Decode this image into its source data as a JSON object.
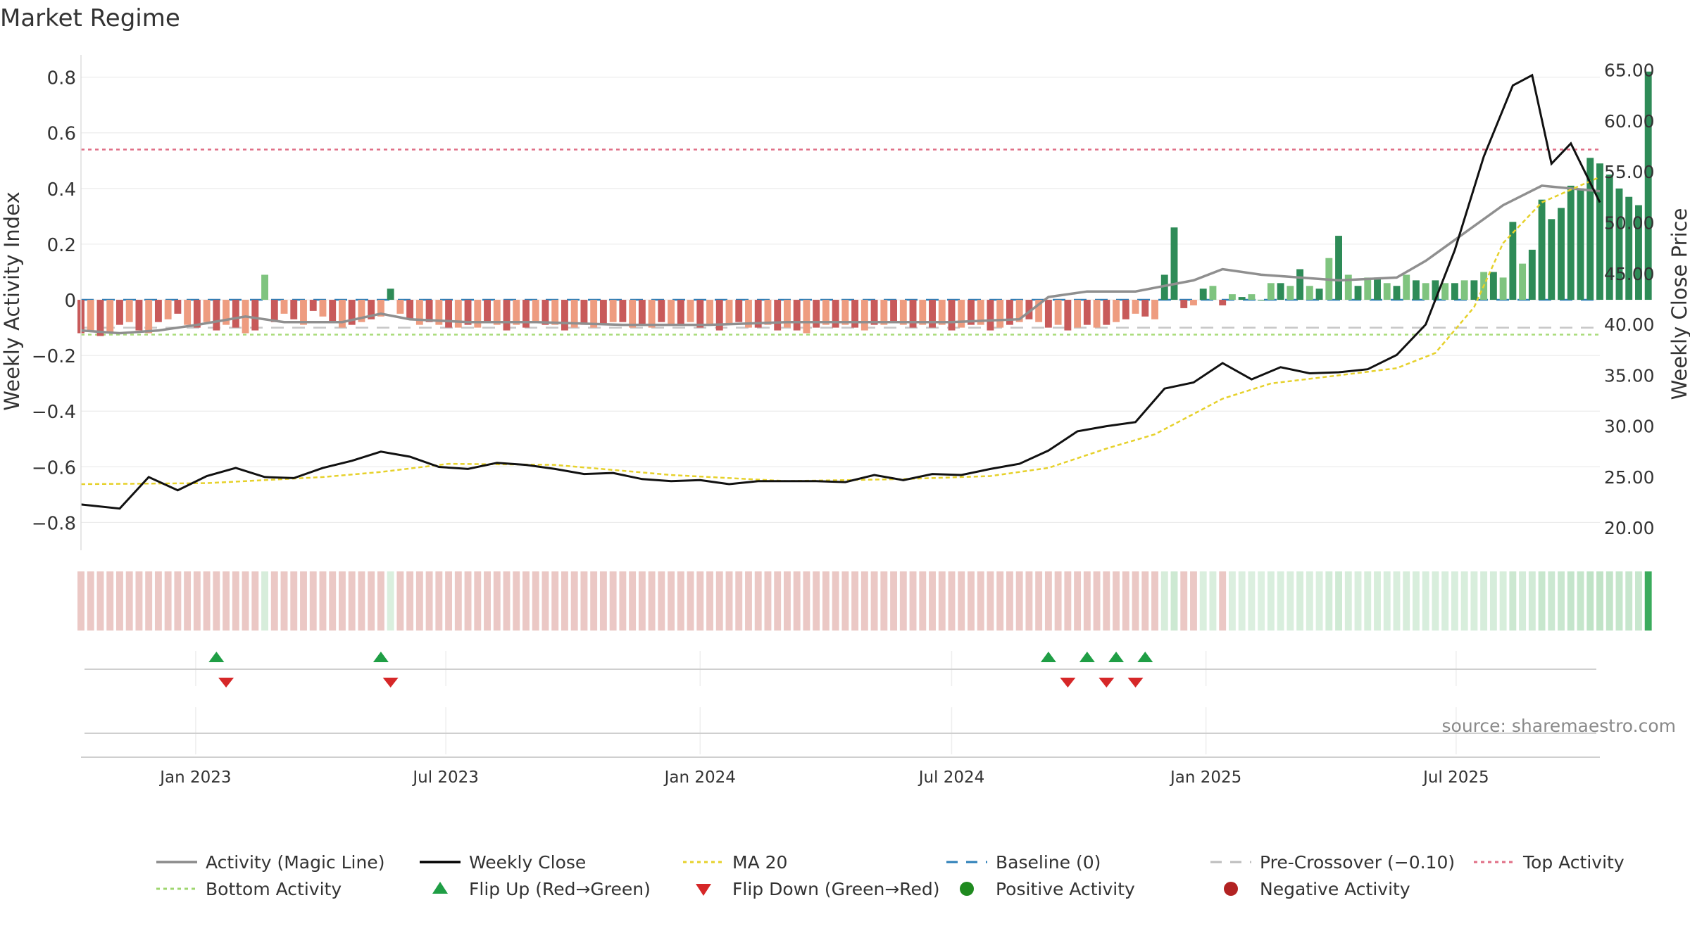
{
  "chart_data": {
    "type": "bar",
    "title": "Market Regime",
    "source_note": "source: sharemaestro.com",
    "y_left_label": "Weekly Activity Index",
    "y_right_label": "Weekly Close Price",
    "ylim_left": [
      -0.9,
      0.88
    ],
    "ylim_right": [
      17.8,
      66.5
    ],
    "y_left_ticks": [
      {
        "v": 0.8,
        "t": "0.8"
      },
      {
        "v": 0.6,
        "t": "0.6"
      },
      {
        "v": 0.4,
        "t": "0.4"
      },
      {
        "v": 0.2,
        "t": "0.2"
      },
      {
        "v": 0,
        "t": "0"
      },
      {
        "v": -0.2,
        "t": "−0.2"
      },
      {
        "v": -0.4,
        "t": "−0.4"
      },
      {
        "v": -0.6,
        "t": "−0.6"
      },
      {
        "v": -0.8,
        "t": "−0.8"
      }
    ],
    "y_right_ticks": [
      {
        "v": 65,
        "t": "65.00"
      },
      {
        "v": 60,
        "t": "60.00"
      },
      {
        "v": 55,
        "t": "55.00"
      },
      {
        "v": 50,
        "t": "50.00"
      },
      {
        "v": 45,
        "t": "45.00"
      },
      {
        "v": 40,
        "t": "40.00"
      },
      {
        "v": 35,
        "t": "35.00"
      },
      {
        "v": 30,
        "t": "30.00"
      },
      {
        "v": 25,
        "t": "25.00"
      },
      {
        "v": 20,
        "t": "20.00"
      }
    ],
    "x_start": "2022-10-10",
    "x_end": "2025-10-13",
    "x_ticks": [
      {
        "date": "2023-01-01",
        "label": "Jan 2023"
      },
      {
        "date": "2023-07-01",
        "label": "Jul 2023"
      },
      {
        "date": "2024-01-01",
        "label": "Jan 2024"
      },
      {
        "date": "2024-07-01",
        "label": "Jul 2024"
      },
      {
        "date": "2025-01-01",
        "label": "Jan 2025"
      },
      {
        "date": "2025-07-01",
        "label": "Jul 2025"
      }
    ],
    "reference_lines": {
      "baseline": 0,
      "pre_crossover": -0.1,
      "top_activity": 0.54,
      "bottom_activity": -0.125
    },
    "flip_up_dates": [
      "2023-01-16",
      "2023-05-15",
      "2024-09-09",
      "2024-10-07",
      "2024-10-28",
      "2024-11-18"
    ],
    "flip_down_dates": [
      "2023-01-23",
      "2023-05-22",
      "2024-09-23",
      "2024-10-21",
      "2024-11-11"
    ],
    "series": [
      {
        "name": "Weekly Close",
        "points": [
          [
            "2022-10-10",
            22.3
          ],
          [
            "2022-11-07",
            21.9
          ],
          [
            "2022-11-28",
            25.0
          ],
          [
            "2022-12-19",
            23.7
          ],
          [
            "2023-01-09",
            25.1
          ],
          [
            "2023-01-30",
            25.9
          ],
          [
            "2023-02-20",
            25.0
          ],
          [
            "2023-03-13",
            24.9
          ],
          [
            "2023-04-03",
            25.9
          ],
          [
            "2023-04-24",
            26.6
          ],
          [
            "2023-05-15",
            27.5
          ],
          [
            "2023-06-05",
            27.0
          ],
          [
            "2023-06-26",
            26.0
          ],
          [
            "2023-07-17",
            25.8
          ],
          [
            "2023-08-07",
            26.4
          ],
          [
            "2023-08-28",
            26.2
          ],
          [
            "2023-09-18",
            25.8
          ],
          [
            "2023-10-09",
            25.3
          ],
          [
            "2023-10-30",
            25.4
          ],
          [
            "2023-11-20",
            24.8
          ],
          [
            "2023-12-11",
            24.6
          ],
          [
            "2024-01-01",
            24.7
          ],
          [
            "2024-01-22",
            24.3
          ],
          [
            "2024-02-12",
            24.6
          ],
          [
            "2024-03-04",
            24.6
          ],
          [
            "2024-03-25",
            24.6
          ],
          [
            "2024-04-15",
            24.5
          ],
          [
            "2024-05-06",
            25.2
          ],
          [
            "2024-05-27",
            24.7
          ],
          [
            "2024-06-17",
            25.3
          ],
          [
            "2024-07-08",
            25.2
          ],
          [
            "2024-07-29",
            25.8
          ],
          [
            "2024-08-19",
            26.3
          ],
          [
            "2024-09-09",
            27.6
          ],
          [
            "2024-09-30",
            29.5
          ],
          [
            "2024-10-21",
            30.0
          ],
          [
            "2024-11-11",
            30.4
          ],
          [
            "2024-12-02",
            33.7
          ],
          [
            "2024-12-23",
            34.3
          ],
          [
            "2025-01-13",
            36.2
          ],
          [
            "2025-02-03",
            34.6
          ],
          [
            "2025-02-24",
            35.8
          ],
          [
            "2025-03-17",
            35.2
          ],
          [
            "2025-04-07",
            35.3
          ],
          [
            "2025-04-28",
            35.6
          ],
          [
            "2025-05-19",
            37.0
          ],
          [
            "2025-06-09",
            40.0
          ],
          [
            "2025-06-30",
            47.3
          ],
          [
            "2025-07-21",
            56.5
          ],
          [
            "2025-08-11",
            63.5
          ],
          [
            "2025-08-25",
            64.5
          ],
          [
            "2025-09-08",
            55.8
          ],
          [
            "2025-09-22",
            57.8
          ],
          [
            "2025-10-13",
            52.0
          ]
        ]
      },
      {
        "name": "MA 20",
        "points": [
          [
            "2022-10-10",
            24.3
          ],
          [
            "2023-01-09",
            24.4
          ],
          [
            "2023-04-03",
            25.0
          ],
          [
            "2023-05-15",
            25.5
          ],
          [
            "2023-07-03",
            26.3
          ],
          [
            "2023-09-18",
            26.2
          ],
          [
            "2023-12-11",
            25.2
          ],
          [
            "2024-03-04",
            24.6
          ],
          [
            "2024-05-27",
            24.8
          ],
          [
            "2024-07-29",
            25.1
          ],
          [
            "2024-09-09",
            25.9
          ],
          [
            "2024-10-21",
            27.8
          ],
          [
            "2024-11-25",
            29.2
          ],
          [
            "2025-01-13",
            32.7
          ],
          [
            "2025-02-17",
            34.2
          ],
          [
            "2025-04-07",
            35.0
          ],
          [
            "2025-05-19",
            35.7
          ],
          [
            "2025-06-16",
            37.2
          ],
          [
            "2025-07-14",
            41.7
          ],
          [
            "2025-08-04",
            48.0
          ],
          [
            "2025-09-01",
            52.0
          ],
          [
            "2025-10-13",
            54.5
          ]
        ]
      },
      {
        "name": "Activity (Magic Line)",
        "points": [
          [
            "2022-10-10",
            -0.11
          ],
          [
            "2022-11-07",
            -0.12
          ],
          [
            "2022-12-05",
            -0.11
          ],
          [
            "2023-01-02",
            -0.09
          ],
          [
            "2023-02-06",
            -0.06
          ],
          [
            "2023-03-06",
            -0.08
          ],
          [
            "2023-04-17",
            -0.08
          ],
          [
            "2023-05-15",
            -0.05
          ],
          [
            "2023-06-05",
            -0.07
          ],
          [
            "2023-07-17",
            -0.08
          ],
          [
            "2023-09-04",
            -0.08
          ],
          [
            "2023-11-06",
            -0.09
          ],
          [
            "2024-01-08",
            -0.09
          ],
          [
            "2024-03-04",
            -0.08
          ],
          [
            "2024-05-06",
            -0.08
          ],
          [
            "2024-07-01",
            -0.08
          ],
          [
            "2024-08-19",
            -0.07
          ],
          [
            "2024-09-09",
            0.01
          ],
          [
            "2024-10-07",
            0.03
          ],
          [
            "2024-11-11",
            0.03
          ],
          [
            "2024-12-23",
            0.07
          ],
          [
            "2025-01-13",
            0.11
          ],
          [
            "2025-02-10",
            0.09
          ],
          [
            "2025-04-07",
            0.07
          ],
          [
            "2025-05-19",
            0.08
          ],
          [
            "2025-06-09",
            0.14
          ],
          [
            "2025-07-07",
            0.24
          ],
          [
            "2025-08-04",
            0.34
          ],
          [
            "2025-09-01",
            0.41
          ],
          [
            "2025-10-13",
            0.39
          ]
        ]
      },
      {
        "name": "Weekly Activity Index",
        "weekly_values_from": "2022-10-10",
        "values": [
          -0.12,
          -0.11,
          -0.13,
          -0.12,
          -0.09,
          -0.08,
          -0.11,
          -0.12,
          -0.08,
          -0.07,
          -0.05,
          -0.09,
          -0.1,
          -0.08,
          -0.11,
          -0.09,
          -0.1,
          -0.12,
          -0.11,
          0.09,
          -0.08,
          -0.05,
          -0.07,
          -0.09,
          -0.04,
          -0.06,
          -0.08,
          -0.1,
          -0.09,
          -0.08,
          -0.07,
          -0.06,
          0.04,
          -0.05,
          -0.07,
          -0.09,
          -0.08,
          -0.09,
          -0.1,
          -0.1,
          -0.09,
          -0.1,
          -0.08,
          -0.09,
          -0.11,
          -0.09,
          -0.1,
          -0.08,
          -0.09,
          -0.09,
          -0.11,
          -0.1,
          -0.09,
          -0.1,
          -0.09,
          -0.08,
          -0.08,
          -0.1,
          -0.09,
          -0.1,
          -0.08,
          -0.09,
          -0.09,
          -0.08,
          -0.1,
          -0.09,
          -0.11,
          -0.09,
          -0.08,
          -0.1,
          -0.1,
          -0.09,
          -0.11,
          -0.1,
          -0.11,
          -0.12,
          -0.1,
          -0.09,
          -0.1,
          -0.09,
          -0.1,
          -0.11,
          -0.09,
          -0.09,
          -0.08,
          -0.09,
          -0.1,
          -0.09,
          -0.1,
          -0.09,
          -0.11,
          -0.1,
          -0.09,
          -0.09,
          -0.11,
          -0.1,
          -0.09,
          -0.08,
          -0.07,
          -0.08,
          -0.1,
          -0.09,
          -0.11,
          -0.1,
          -0.09,
          -0.1,
          -0.09,
          -0.08,
          -0.07,
          -0.05,
          -0.06,
          -0.07,
          0.09,
          0.26,
          -0.03,
          -0.02,
          0.04,
          0.05,
          -0.02,
          0.02,
          0.01,
          0.02,
          0.0,
          0.06,
          0.06,
          0.05,
          0.11,
          0.05,
          0.04,
          0.15,
          0.23,
          0.09,
          0.05,
          0.08,
          0.08,
          0.06,
          0.05,
          0.09,
          0.07,
          0.06,
          0.07,
          0.06,
          0.06,
          0.07,
          0.07,
          0.1,
          0.1,
          0.08,
          0.28,
          0.13,
          0.18,
          0.36,
          0.29,
          0.33,
          0.41,
          0.4,
          0.51,
          0.49,
          0.45,
          0.4,
          0.37,
          0.34,
          0.82
        ]
      }
    ],
    "legend": [
      {
        "label": "Activity (Magic Line)",
        "kind": "line",
        "color": "#8a8a8a"
      },
      {
        "label": "Weekly Close",
        "kind": "line",
        "color": "#000000"
      },
      {
        "label": "MA 20",
        "kind": "dotted",
        "color": "#e6d12b"
      },
      {
        "label": "Baseline (0)",
        "kind": "dashed",
        "color": "#2c7fb8"
      },
      {
        "label": "Pre-Crossover (−0.10)",
        "kind": "dashed",
        "color": "#bdbdbd"
      },
      {
        "label": "Top Activity",
        "kind": "dotted",
        "color": "#e06f86"
      },
      {
        "label": "Bottom Activity",
        "kind": "dotted",
        "color": "#9fd66f"
      },
      {
        "label": "Flip Up (Red→Green)",
        "kind": "tri-up",
        "color": "#1f9e45"
      },
      {
        "label": "Flip Down (Green→Red)",
        "kind": "tri-down",
        "color": "#d62728"
      },
      {
        "label": "Positive Activity",
        "kind": "dot",
        "color": "#1f8a1f"
      },
      {
        "label": "Negative Activity",
        "kind": "dot",
        "color": "#b22222"
      }
    ],
    "colors": {
      "pos_dark": "#2e8b57",
      "pos_light": "#7fc47f",
      "neg_dark": "#c85a5a",
      "neg_light": "#ee9c80",
      "strip_neg": "#ebc8c5",
      "strip_pos": "#bfe3c6",
      "strip_pos_strong": "#3aab5c"
    }
  }
}
